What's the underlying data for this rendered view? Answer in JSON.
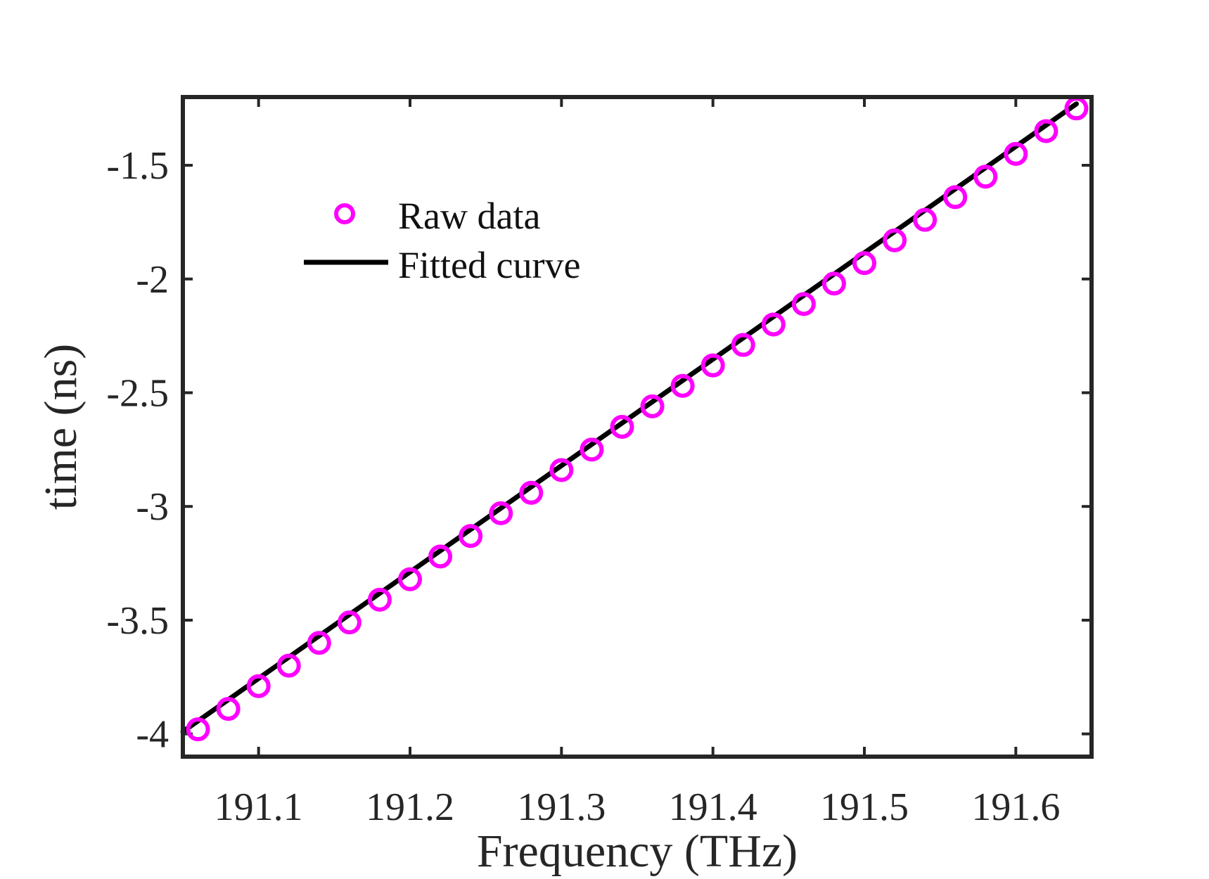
{
  "chart_data": {
    "type": "scatter",
    "title": "",
    "xlabel": "Frequency (THz)",
    "ylabel": "time (ns)",
    "xlim": [
      191.05,
      191.65
    ],
    "ylim": [
      -4.1,
      -1.2
    ],
    "x_ticks": [
      191.1,
      191.2,
      191.3,
      191.4,
      191.5,
      191.6
    ],
    "x_tick_labels": [
      "191.1",
      "191.2",
      "191.3",
      "191.4",
      "191.5",
      "191.6"
    ],
    "y_ticks": [
      -4,
      -3.5,
      -3,
      -2.5,
      -2,
      -1.5
    ],
    "y_tick_labels": [
      "-4",
      "-3.5",
      "-3",
      "-2.5",
      "-2",
      "-1.5"
    ],
    "grid": false,
    "legend_position": "top-left",
    "series": [
      {
        "name": "Raw data",
        "kind": "scatter",
        "marker": "circle-open",
        "color": "#ff00ff",
        "x": [
          191.06,
          191.08,
          191.1,
          191.12,
          191.14,
          191.16,
          191.18,
          191.2,
          191.22,
          191.24,
          191.26,
          191.28,
          191.3,
          191.32,
          191.34,
          191.36,
          191.38,
          191.4,
          191.42,
          191.44,
          191.46,
          191.48,
          191.5,
          191.52,
          191.54,
          191.56,
          191.58,
          191.6,
          191.62,
          191.64
        ],
        "y": [
          -3.98,
          -3.89,
          -3.79,
          -3.7,
          -3.6,
          -3.51,
          -3.41,
          -3.32,
          -3.22,
          -3.13,
          -3.03,
          -2.94,
          -2.84,
          -2.75,
          -2.65,
          -2.56,
          -2.47,
          -2.38,
          -2.29,
          -2.2,
          -2.11,
          -2.02,
          -1.93,
          -1.83,
          -1.74,
          -1.64,
          -1.55,
          -1.45,
          -1.35,
          -1.25
        ]
      },
      {
        "name": "Fitted curve",
        "kind": "line",
        "color": "#000000",
        "x": [
          191.05,
          191.64
        ],
        "y": [
          -3.99,
          -1.23
        ]
      }
    ]
  }
}
